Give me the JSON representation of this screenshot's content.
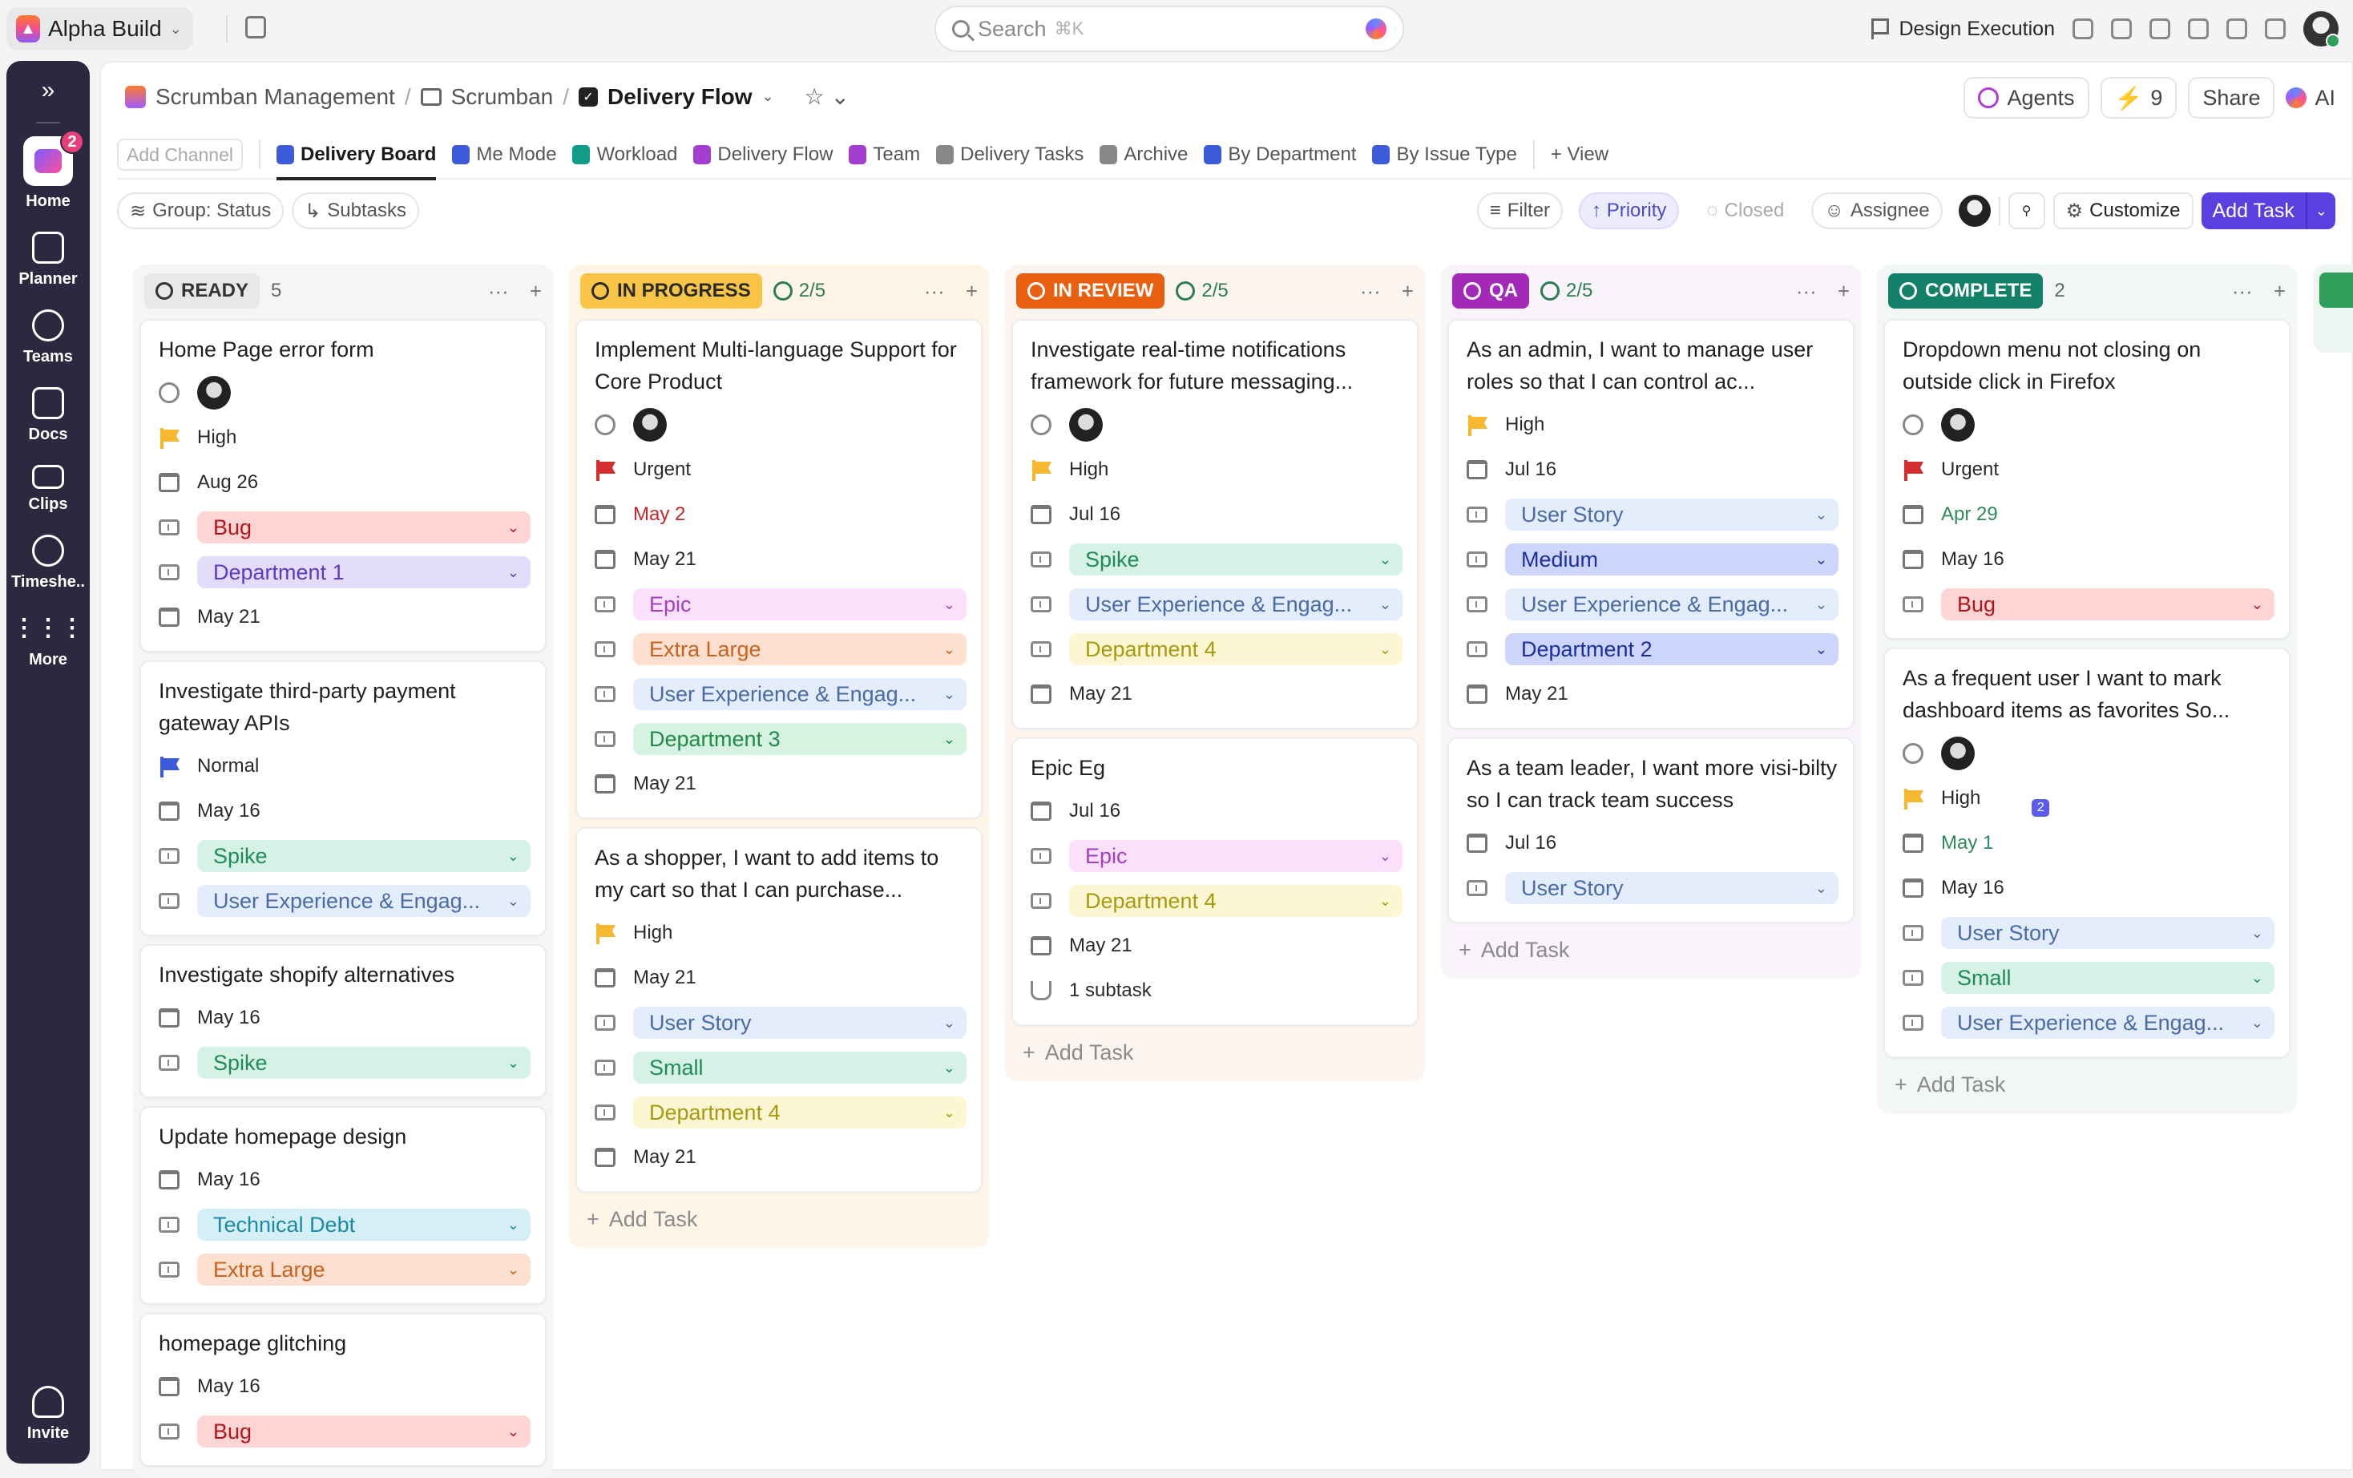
{
  "topbar": {
    "workspace": "Alpha Build",
    "search_placeholder": "Search",
    "search_shortcut": "⌘K",
    "design_execution": "Design Execution"
  },
  "sidebar": {
    "items": [
      {
        "label": "Home",
        "badge": "2"
      },
      {
        "label": "Planner"
      },
      {
        "label": "Teams"
      },
      {
        "label": "Docs"
      },
      {
        "label": "Clips"
      },
      {
        "label": "Timeshe.."
      },
      {
        "label": "More"
      }
    ],
    "invite": "Invite"
  },
  "header": {
    "breadcrumb": [
      "Scrumban Management",
      "Scrumban",
      "Delivery Flow"
    ],
    "agents": "Agents",
    "bolt_count": "9",
    "share": "Share",
    "ai": "AI"
  },
  "tabs": {
    "add_channel": "Add Channel",
    "items": [
      {
        "label": "Delivery Board",
        "color": "#3b5bdb",
        "active": true
      },
      {
        "label": "Me Mode",
        "color": "#3b5bdb"
      },
      {
        "label": "Workload",
        "color": "#0f9d8a"
      },
      {
        "label": "Delivery Flow",
        "color": "#a23fd1"
      },
      {
        "label": "Team",
        "color": "#a23fd1"
      },
      {
        "label": "Delivery Tasks",
        "color": "#888888"
      },
      {
        "label": "Archive",
        "color": "#888888"
      },
      {
        "label": "By Department",
        "color": "#3b5bdb"
      },
      {
        "label": "By Issue Type",
        "color": "#3b5bdb"
      }
    ],
    "add_view": "+ View"
  },
  "toolbar": {
    "group": "Group: Status",
    "subtasks": "Subtasks",
    "filter": "Filter",
    "priority": "↑ Priority",
    "closed": "Closed",
    "assignee": "Assignee",
    "customize": "Customize",
    "add_task": "Add Task"
  },
  "columns": [
    {
      "status": "READY",
      "count": "5",
      "count_style": "plain",
      "status_bg": "#e8e8ea",
      "status_fg": "#333333",
      "col_bg": "#f5f5f6",
      "cards": [
        {
          "title": "Home Page error form",
          "rows": [
            {
              "type": "assignee"
            },
            {
              "type": "priority",
              "label": "High",
              "color": "#f5b82e"
            },
            {
              "type": "date",
              "label": "Aug 26"
            },
            {
              "type": "tag",
              "label": "Bug",
              "bg": "#fdd5d5",
              "fg": "#b3151b"
            },
            {
              "type": "tag",
              "label": "Department 1",
              "bg": "#e4dcfb",
              "fg": "#5b3bc4"
            },
            {
              "type": "date",
              "label": "May 21"
            }
          ]
        },
        {
          "title": "Investigate third-party payment gateway APIs",
          "rows": [
            {
              "type": "priority",
              "label": "Normal",
              "color": "#3b5bdb"
            },
            {
              "type": "date",
              "label": "May 16"
            },
            {
              "type": "tag",
              "label": "Spike",
              "bg": "#d6f2e6",
              "fg": "#1f8a5b"
            },
            {
              "type": "tag",
              "label": "User Experience & Engag...",
              "bg": "#e3edfc",
              "fg": "#4a6aa8"
            }
          ]
        },
        {
          "title": "Investigate shopify alternatives",
          "rows": [
            {
              "type": "date",
              "label": "May 16"
            },
            {
              "type": "tag",
              "label": "Spike",
              "bg": "#d6f2e6",
              "fg": "#1f8a5b"
            }
          ]
        },
        {
          "title": "Update homepage design",
          "rows": [
            {
              "type": "date",
              "label": "May 16"
            },
            {
              "type": "tag",
              "label": "Technical Debt",
              "bg": "#d5eff7",
              "fg": "#1b8aa8"
            },
            {
              "type": "tag",
              "label": "Extra Large",
              "bg": "#fde0d0",
              "fg": "#c8621e"
            }
          ]
        },
        {
          "title": "homepage glitching",
          "rows": [
            {
              "type": "date",
              "label": "May 16"
            },
            {
              "type": "tag",
              "label": "Bug",
              "bg": "#fdd5d5",
              "fg": "#b3151b"
            }
          ]
        }
      ]
    },
    {
      "status": "IN PROGRESS",
      "count": "2/5",
      "count_style": "check",
      "status_bg": "#f8c546",
      "status_fg": "#2a2a2a",
      "col_bg": "#fef5e6",
      "cards": [
        {
          "title": "Implement Multi-language Support for Core Product",
          "rows": [
            {
              "type": "assignee"
            },
            {
              "type": "priority",
              "label": "Urgent",
              "color": "#d32f2f"
            },
            {
              "type": "date",
              "label": "May 2",
              "text_color": "#c62828"
            },
            {
              "type": "date",
              "label": "May 21"
            },
            {
              "type": "tag",
              "label": "Epic",
              "bg": "#fbe0fb",
              "fg": "#a33fc2"
            },
            {
              "type": "tag",
              "label": "Extra Large",
              "bg": "#fde0d0",
              "fg": "#c8621e"
            },
            {
              "type": "tag",
              "label": "User Experience & Engag...",
              "bg": "#e3edfc",
              "fg": "#4a6aa8"
            },
            {
              "type": "tag",
              "label": "Department 3",
              "bg": "#d6f2e0",
              "fg": "#1f8a4b"
            },
            {
              "type": "date",
              "label": "May 21"
            }
          ]
        },
        {
          "title": "As a shopper, I want to add items to my cart so that I can purchase...",
          "rows": [
            {
              "type": "priority",
              "label": "High",
              "color": "#f5b82e"
            },
            {
              "type": "date",
              "label": "May 21"
            },
            {
              "type": "tag",
              "label": "User Story",
              "bg": "#e3edfc",
              "fg": "#4a6aa8"
            },
            {
              "type": "tag",
              "label": "Small",
              "bg": "#d6f2e6",
              "fg": "#1f8a5b"
            },
            {
              "type": "tag",
              "label": "Department 4",
              "bg": "#fdf6d2",
              "fg": "#a89a10"
            },
            {
              "type": "date",
              "label": "May 21"
            }
          ]
        }
      ]
    },
    {
      "status": "IN REVIEW",
      "count": "2/5",
      "count_style": "check",
      "status_bg": "#e8600f",
      "status_fg": "#ffffff",
      "col_bg": "#fcf5ef",
      "cards": [
        {
          "title": "Investigate real-time notifications framework for future messaging...",
          "rows": [
            {
              "type": "assignee"
            },
            {
              "type": "priority",
              "label": "High",
              "color": "#f5b82e"
            },
            {
              "type": "date",
              "label": "Jul 16"
            },
            {
              "type": "tag",
              "label": "Spike",
              "bg": "#d6f2e6",
              "fg": "#1f8a5b"
            },
            {
              "type": "tag",
              "label": "User Experience & Engag...",
              "bg": "#e3edfc",
              "fg": "#4a6aa8"
            },
            {
              "type": "tag",
              "label": "Department 4",
              "bg": "#fdf6d2",
              "fg": "#a89a10"
            },
            {
              "type": "date",
              "label": "May 21"
            }
          ]
        },
        {
          "title": "Epic Eg",
          "rows": [
            {
              "type": "date",
              "label": "Jul 16"
            },
            {
              "type": "tag",
              "label": "Epic",
              "bg": "#fbe0fb",
              "fg": "#a33fc2"
            },
            {
              "type": "tag",
              "label": "Department 4",
              "bg": "#fdf6d2",
              "fg": "#a89a10"
            },
            {
              "type": "date",
              "label": "May 21"
            },
            {
              "type": "subtask",
              "label": "1 subtask"
            }
          ]
        }
      ]
    },
    {
      "status": "QA",
      "count": "2/5",
      "count_style": "check",
      "status_bg": "#a32ab8",
      "status_fg": "#ffffff",
      "col_bg": "#f9f3fa",
      "cards": [
        {
          "title": "As an admin, I want to manage user roles so that I can control ac...",
          "rows": [
            {
              "type": "priority",
              "label": "High",
              "color": "#f5b82e"
            },
            {
              "type": "date",
              "label": "Jul 16"
            },
            {
              "type": "tag",
              "label": "User Story",
              "bg": "#e3edfc",
              "fg": "#4a6aa8"
            },
            {
              "type": "tag",
              "label": "Medium",
              "bg": "#cdd5fa",
              "fg": "#1c2fa0"
            },
            {
              "type": "tag",
              "label": "User Experience & Engag...",
              "bg": "#e3edfc",
              "fg": "#4a6aa8"
            },
            {
              "type": "tag",
              "label": "Department 2",
              "bg": "#cdd5fa",
              "fg": "#1c2fa0"
            },
            {
              "type": "date",
              "label": "May 21"
            }
          ]
        },
        {
          "title": "As a team leader, I want more visi-bilty so I can track team success",
          "rows": [
            {
              "type": "date",
              "label": "Jul 16"
            },
            {
              "type": "tag",
              "label": "User Story",
              "bg": "#e3edfc",
              "fg": "#4a6aa8"
            }
          ]
        }
      ]
    },
    {
      "status": "COMPLETE",
      "count": "2",
      "count_style": "plain",
      "status_bg": "#13806a",
      "status_fg": "#ffffff",
      "col_bg": "#f2f6f5",
      "cards": [
        {
          "title": "Dropdown menu not closing on outside click in Firefox",
          "rows": [
            {
              "type": "assignee"
            },
            {
              "type": "priority",
              "label": "Urgent",
              "color": "#d32f2f"
            },
            {
              "type": "date",
              "label": "Apr 29",
              "text_color": "#2e8a5a"
            },
            {
              "type": "date",
              "label": "May 16"
            },
            {
              "type": "tag",
              "label": "Bug",
              "bg": "#fdd5d5",
              "fg": "#b3151b"
            }
          ]
        },
        {
          "title": "As a frequent user I want to mark dashboard items as favorites So...",
          "rows": [
            {
              "type": "assignee"
            },
            {
              "type": "priority",
              "label": "High",
              "color": "#f5b82e",
              "watchers": "2"
            },
            {
              "type": "date",
              "label": "May 1",
              "text_color": "#2e8a5a"
            },
            {
              "type": "date",
              "label": "May 16"
            },
            {
              "type": "tag",
              "label": "User Story",
              "bg": "#e3edfc",
              "fg": "#4a6aa8"
            },
            {
              "type": "tag",
              "label": "Small",
              "bg": "#d6f2e6",
              "fg": "#1f8a5b"
            },
            {
              "type": "tag",
              "label": "User Experience & Engag...",
              "bg": "#e3edfc",
              "fg": "#4a6aa8"
            }
          ]
        }
      ]
    }
  ],
  "add_task_label": "Add Task"
}
